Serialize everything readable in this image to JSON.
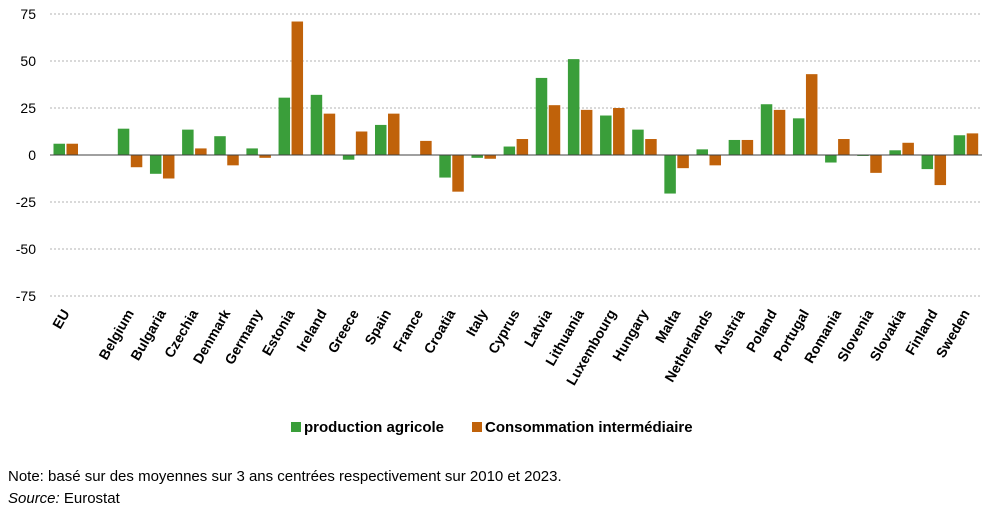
{
  "chart_data": {
    "type": "bar",
    "categories": [
      "EU",
      "Belgium",
      "Bulgaria",
      "Czechia",
      "Denmark",
      "Germany",
      "Estonia",
      "Ireland",
      "Greece",
      "Spain",
      "France",
      "Croatia",
      "Italy",
      "Cyprus",
      "Latvia",
      "Lithuania",
      "Luxembourg",
      "Hungary",
      "Malta",
      "Netherlands",
      "Austria",
      "Poland",
      "Portugal",
      "Romania",
      "Slovenia",
      "Slovakia",
      "Finland",
      "Sweden"
    ],
    "gap_after_index": 0,
    "series": [
      {
        "name": "production agricole",
        "color": "#3a9e3a",
        "values": [
          6,
          14,
          -10,
          13.5,
          10,
          3.5,
          30.5,
          32,
          -2.5,
          16,
          0,
          -12,
          -1.5,
          4.5,
          41,
          51,
          21,
          13.5,
          -20.5,
          3,
          8,
          27,
          19.5,
          -4,
          -0.5,
          2.5,
          -7.5,
          10.5
        ]
      },
      {
        "name": "Consommation intermédiaire",
        "color": "#c0620a",
        "values": [
          6,
          -6.5,
          -12.5,
          3.5,
          -5.5,
          -1.5,
          71,
          22,
          12.5,
          22,
          7.5,
          -19.5,
          -2,
          8.5,
          26.5,
          24,
          25,
          8.5,
          -7,
          -5.5,
          8,
          24,
          43,
          8.5,
          -9.5,
          6.5,
          -16,
          11.5
        ]
      }
    ],
    "ylim": [
      -75,
      75
    ],
    "yticks": [
      "75",
      "50",
      "25",
      "0",
      "-25",
      "-50",
      "-75"
    ],
    "ytick_values": [
      75,
      50,
      25,
      0,
      -25,
      -50,
      -75
    ],
    "grid": "horizontal dashed",
    "legend_position": "bottom"
  },
  "footnote": {
    "note": "Note: basé sur des moyennes sur 3 ans centrées respectivement sur 2010 et 2023.",
    "source_label": "Source:",
    "source_text": " Eurostat"
  }
}
